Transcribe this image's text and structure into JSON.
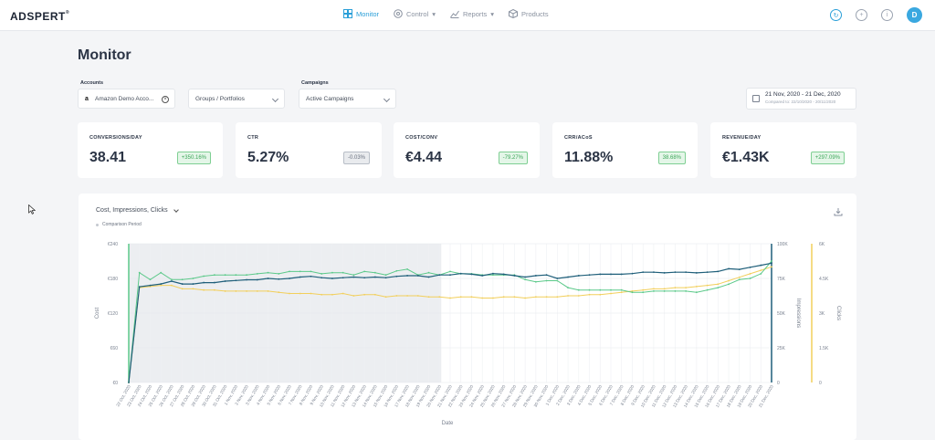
{
  "app": {
    "logo": "ADSPERT",
    "logo_mark": "®"
  },
  "nav": [
    {
      "label": "Monitor",
      "icon": "monitor-icon",
      "active": true
    },
    {
      "label": "Control",
      "icon": "control-icon",
      "active": false
    },
    {
      "label": "Reports",
      "icon": "reports-icon",
      "active": false
    },
    {
      "label": "Products",
      "icon": "products-icon",
      "active": false
    }
  ],
  "header_icons": [
    "refresh-icon",
    "add-icon",
    "info-icon"
  ],
  "user": {
    "initial": "D"
  },
  "page": {
    "title": "Monitor"
  },
  "filters": {
    "accounts_label": "Accounts",
    "account_value": "Amazon Demo Acco...",
    "groups_value": "Groups / Portfolios",
    "campaigns_label": "Campaigns",
    "campaigns_value": "Active Campaigns",
    "date_range": "21 Nov, 2020 - 21 Dec, 2020",
    "date_compare": "Compared to: 22/10/2020 - 20/11/2020"
  },
  "kpis": [
    {
      "label": "CONVERSIONS/DAY",
      "value": "38.41",
      "change": "+350.16%",
      "tone": "green"
    },
    {
      "label": "CTR",
      "value": "5.27%",
      "change": "-0.03%",
      "tone": "gray"
    },
    {
      "label": "COST/CONV",
      "value": "€4.44",
      "change": "-79.27%",
      "tone": "green"
    },
    {
      "label": "CRR/ACoS",
      "value": "11.88%",
      "change": "38.68%",
      "tone": "green"
    },
    {
      "label": "REVENUE/DAY",
      "value": "€1.43K",
      "change": "+297.09%",
      "tone": "green"
    }
  ],
  "chart_panel": {
    "metric_selector": "Cost, Impressions, Clicks",
    "comparison_label": "Comparison Period"
  },
  "colors": {
    "accent": "#2a9fd8",
    "cost": "#5cc98a",
    "impressions": "#1f5f7a",
    "clicks": "#f2cf5b"
  },
  "chart_data": {
    "type": "line",
    "xlabel": "Date",
    "ylabel_left": "Cost",
    "ylabel_right1": "Impressions",
    "ylabel_right2": "Clicks",
    "y_left_ticks": [
      "€0",
      "€60",
      "€120",
      "€180",
      "€240"
    ],
    "y_right1_ticks": [
      "0",
      "25K",
      "50K",
      "75K",
      "100K"
    ],
    "y_right2_ticks": [
      "0",
      "1.5K",
      "3K",
      "4.5K",
      "6K"
    ],
    "ylim_left": [
      0,
      240
    ],
    "ylim_right1": [
      0,
      100000
    ],
    "ylim_right2": [
      0,
      6000
    ],
    "comparison_shaded_range": [
      "22 Oct, 2020",
      "20 Nov, 2020"
    ],
    "x": [
      "22 Oct, 2020",
      "23 Oct, 2020",
      "24 Oct, 2020",
      "25 Oct, 2020",
      "26 Oct, 2020",
      "27 Oct, 2020",
      "28 Oct, 2020",
      "29 Oct, 2020",
      "30 Oct, 2020",
      "31 Oct, 2020",
      "1 Nov, 2020",
      "2 Nov, 2020",
      "3 Nov, 2020",
      "4 Nov, 2020",
      "5 Nov, 2020",
      "6 Nov, 2020",
      "7 Nov, 2020",
      "8 Nov, 2020",
      "9 Nov, 2020",
      "10 Nov, 2020",
      "11 Nov, 2020",
      "12 Nov, 2020",
      "13 Nov, 2020",
      "14 Nov, 2020",
      "15 Nov, 2020",
      "16 Nov, 2020",
      "17 Nov, 2020",
      "18 Nov, 2020",
      "19 Nov, 2020",
      "20 Nov, 2020",
      "21 Nov, 2020",
      "22 Nov, 2020",
      "23 Nov, 2020",
      "24 Nov, 2020",
      "25 Nov, 2020",
      "26 Nov, 2020",
      "27 Nov, 2020",
      "28 Nov, 2020",
      "29 Nov, 2020",
      "30 Nov, 2020",
      "1 Dec, 2020",
      "2 Dec, 2020",
      "3 Dec, 2020",
      "4 Dec, 2020",
      "5 Dec, 2020",
      "6 Dec, 2020",
      "7 Dec, 2020",
      "8 Dec, 2020",
      "9 Dec, 2020",
      "10 Dec, 2020",
      "11 Dec, 2020",
      "12 Dec, 2020",
      "13 Dec, 2020",
      "14 Dec, 2020",
      "15 Dec, 2020",
      "16 Dec, 2020",
      "17 Dec, 2020",
      "18 Dec, 2020",
      "19 Dec, 2020",
      "20 Dec, 2020",
      "21 Dec, 2020"
    ],
    "series": [
      {
        "key": "cost",
        "axis": "left",
        "values": [
          0,
          190,
          178,
          190,
          178,
          178,
          180,
          184,
          186,
          186,
          186,
          186,
          188,
          190,
          188,
          192,
          192,
          192,
          188,
          190,
          190,
          186,
          192,
          190,
          186,
          193,
          196,
          186,
          190,
          186,
          192,
          188,
          188,
          186,
          186,
          186,
          186,
          178,
          174,
          176,
          176,
          164,
          160,
          160,
          160,
          160,
          160,
          156,
          156,
          158,
          158,
          158,
          158,
          156,
          160,
          164,
          170,
          178,
          180,
          188,
          210
        ]
      },
      {
        "key": "impressions",
        "axis": "right1",
        "values": [
          0,
          69000,
          70000,
          71000,
          73000,
          71000,
          71000,
          72000,
          72000,
          73000,
          73500,
          74000,
          74000,
          75000,
          74500,
          75000,
          76000,
          76500,
          75500,
          75000,
          75500,
          76000,
          75500,
          76000,
          75500,
          76500,
          77000,
          77000,
          76000,
          77500,
          77500,
          78500,
          78000,
          77000,
          78500,
          78000,
          77000,
          76000,
          77000,
          77500,
          75000,
          76000,
          77000,
          77500,
          78000,
          78000,
          78000,
          78500,
          79500,
          79500,
          79000,
          79500,
          79500,
          79000,
          79500,
          80000,
          82000,
          81500,
          83000,
          84500,
          86000
        ]
      },
      {
        "key": "clicks",
        "axis": "right2",
        "values": [
          0,
          4100,
          4150,
          4200,
          4200,
          4050,
          4050,
          4000,
          4000,
          3950,
          3950,
          3950,
          3950,
          3950,
          3900,
          3850,
          3850,
          3850,
          3800,
          3800,
          3850,
          3750,
          3800,
          3800,
          3700,
          3750,
          3750,
          3750,
          3700,
          3700,
          3650,
          3700,
          3700,
          3650,
          3650,
          3700,
          3700,
          3650,
          3700,
          3700,
          3700,
          3750,
          3750,
          3800,
          3800,
          3850,
          3900,
          3950,
          4000,
          4050,
          4050,
          4100,
          4100,
          4150,
          4200,
          4250,
          4400,
          4550,
          4700,
          4850,
          5000
        ]
      }
    ]
  }
}
